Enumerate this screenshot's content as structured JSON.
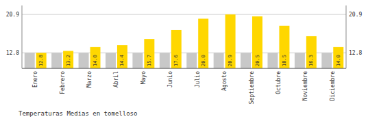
{
  "chart_data": {
    "type": "bar",
    "title": "Temperaturas Medias en tomelloso",
    "categories": [
      "Enero",
      "Febrero",
      "Marzo",
      "Abril",
      "Mayo",
      "Junio",
      "Julio",
      "Agosto",
      "Septiembre",
      "Octubre",
      "Noviembre",
      "Diciembre"
    ],
    "series": [
      {
        "color": "#C8C8C8",
        "values": [
          12.8,
          12.8,
          12.8,
          12.8,
          12.8,
          12.8,
          12.8,
          12.8,
          12.8,
          12.8,
          12.8,
          12.8
        ]
      },
      {
        "color": "#FFD700",
        "values": [
          12.8,
          13.2,
          14.0,
          14.4,
          15.7,
          17.6,
          20.0,
          20.9,
          20.5,
          18.5,
          16.3,
          14.0
        ],
        "data_labels": true,
        "value_labels": [
          "12.8",
          "13.2",
          "14.0",
          "14.4",
          "15.7",
          "17.6",
          "20.0",
          "20.9",
          "20.5",
          "18.5",
          "16.3",
          "14.0"
        ]
      }
    ],
    "ylim": [
      9.5,
      22.8
    ],
    "yticks": [
      12.8,
      20.9
    ],
    "y2lim": [
      9.5,
      22.8
    ],
    "y2ticks": [
      12.8,
      20.9
    ],
    "grid": true
  }
}
